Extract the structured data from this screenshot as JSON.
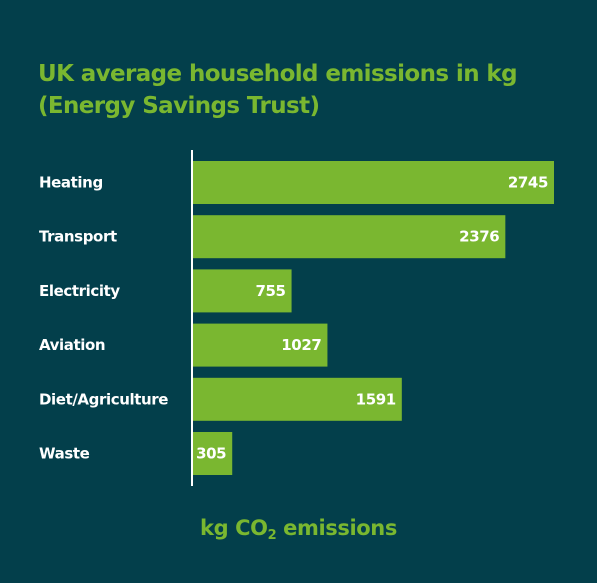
{
  "chart_data": {
    "type": "bar",
    "orientation": "horizontal",
    "title_lines": [
      "UK average household emissions in kg",
      "(Energy Savings Trust)"
    ],
    "categories": [
      "Heating",
      "Transport",
      "Electricity",
      "Aviation",
      "Diet/Agriculture",
      "Waste"
    ],
    "values": [
      2745,
      2376,
      755,
      1027,
      1591,
      305
    ],
    "value_labels": [
      "2745",
      "2376",
      "755",
      "1027",
      "1591",
      "305"
    ],
    "xlabel": {
      "prefix": "kg CO",
      "subscript": "2",
      "suffix": " emissions"
    },
    "xlim": [
      0,
      2800
    ],
    "grid": false,
    "legend": "none",
    "colors": {
      "background": "#033f4b",
      "bar": "#7ab730",
      "title": "#7ab730",
      "category_text": "#ffffff",
      "value_text": "#ffffff",
      "axis": "#ffffff"
    }
  }
}
